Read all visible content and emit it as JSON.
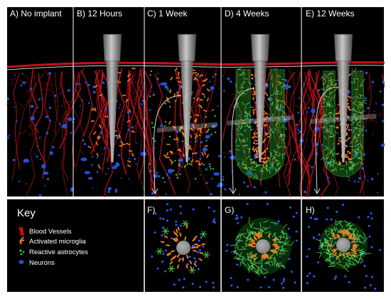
{
  "panels": [
    {
      "id": "A",
      "label": "A) No implant"
    },
    {
      "id": "B",
      "label": "B) 12 Hours"
    },
    {
      "id": "C",
      "label": "C) 1 Week"
    },
    {
      "id": "D",
      "label": "D) 4 Weeks"
    },
    {
      "id": "E",
      "label": "E) 12 Weeks"
    }
  ],
  "cross_sections": [
    {
      "id": "F",
      "label": "F)"
    },
    {
      "id": "G",
      "label": "G)"
    },
    {
      "id": "H",
      "label": "H)"
    }
  ],
  "key": {
    "title": "Key",
    "items": [
      {
        "id": "blood",
        "label": "Blood Vessels",
        "color": "#c8101a"
      },
      {
        "id": "microglia",
        "label": "Activated microglia",
        "color": "#f07a22"
      },
      {
        "id": "astro",
        "label": "Reactive astrocytes",
        "color": "#3ec23e"
      },
      {
        "id": "neuron",
        "label": "Neurons",
        "color": "#1f52e0"
      }
    ]
  },
  "colors": {
    "background": "#000000",
    "frame": "#ffffff",
    "vessel": "#b5121b",
    "microglia": "#f07a22",
    "astrocyte": "#3ec23e",
    "neuron": "#1f52e0",
    "implant": "#9a9a9a"
  }
}
